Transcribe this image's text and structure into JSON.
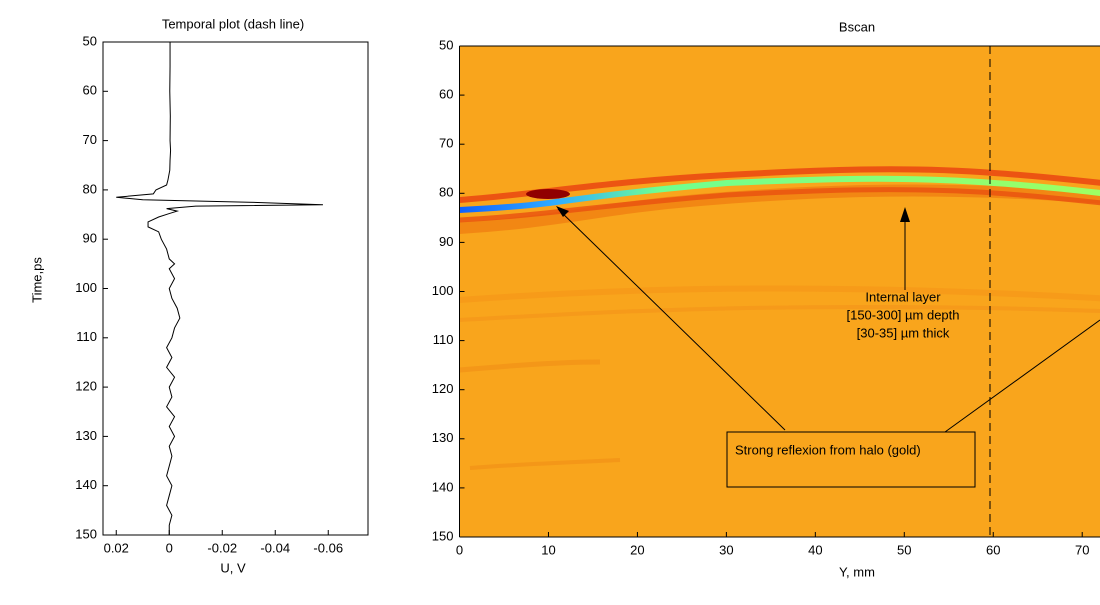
{
  "chart_data": [
    {
      "type": "line",
      "orientation": "vertical",
      "title": "Temporal plot (dash line)",
      "xlabel": "U, V",
      "ylabel": "Time,ps",
      "color": "#000000",
      "x": [
        50,
        55,
        60,
        65,
        70,
        72,
        74,
        76,
        78,
        79,
        80,
        80.8,
        81.5,
        82,
        82.5,
        83,
        83.3,
        83.8,
        84.3,
        84.8,
        85.5,
        86.5,
        87.5,
        88.5,
        90,
        92,
        94,
        95,
        96,
        98,
        100,
        102,
        104,
        106,
        108,
        110,
        112,
        114,
        116,
        118,
        120,
        122,
        124,
        126,
        128,
        130,
        132,
        134,
        136,
        138,
        140,
        142,
        144,
        146,
        148,
        150
      ],
      "values": [
        -0.0003,
        -0.0003,
        -0.0002,
        -0.0004,
        -0.0003,
        -0.0005,
        -0.0003,
        -0.0002,
        0.0005,
        0.001,
        0.005,
        0.006,
        0.02,
        0.01,
        -0.03,
        -0.058,
        -0.01,
        0.001,
        -0.003,
        0.0,
        0.004,
        0.008,
        0.008,
        0.004,
        0.003,
        0.001,
        0.0,
        -0.002,
        0.0,
        -0.002,
        0.0,
        -0.001,
        -0.003,
        -0.004,
        -0.002,
        -0.001,
        0.001,
        -0.001,
        0.001,
        -0.002,
        0.0,
        -0.001,
        0.001,
        -0.002,
        0.0,
        -0.002,
        0.0,
        -0.001,
        0.0,
        0.001,
        -0.001,
        0.0,
        0.001,
        -0.001,
        0.0,
        0.0
      ],
      "xlim": [
        0.025,
        -0.075
      ],
      "xticks": [
        0.02,
        0,
        -0.02,
        -0.04,
        -0.06
      ],
      "ylim": [
        50,
        150
      ],
      "yticks": [
        50,
        60,
        70,
        80,
        90,
        100,
        110,
        120,
        130,
        140,
        150
      ]
    },
    {
      "type": "heatmap",
      "title": "Bscan",
      "xlabel": "Y, mm",
      "xlim": [
        0,
        72
      ],
      "xticks": [
        0,
        10,
        20,
        30,
        40,
        50,
        60,
        70
      ],
      "ylim": [
        50,
        150
      ],
      "yticks": [
        50,
        60,
        70,
        80,
        90,
        100,
        110,
        120,
        130,
        140,
        150
      ],
      "annotations": [
        "Internal layer",
        "[150-300] µm depth",
        "[30-35] µm thick",
        "Strong reflexion from halo (gold)"
      ]
    }
  ]
}
